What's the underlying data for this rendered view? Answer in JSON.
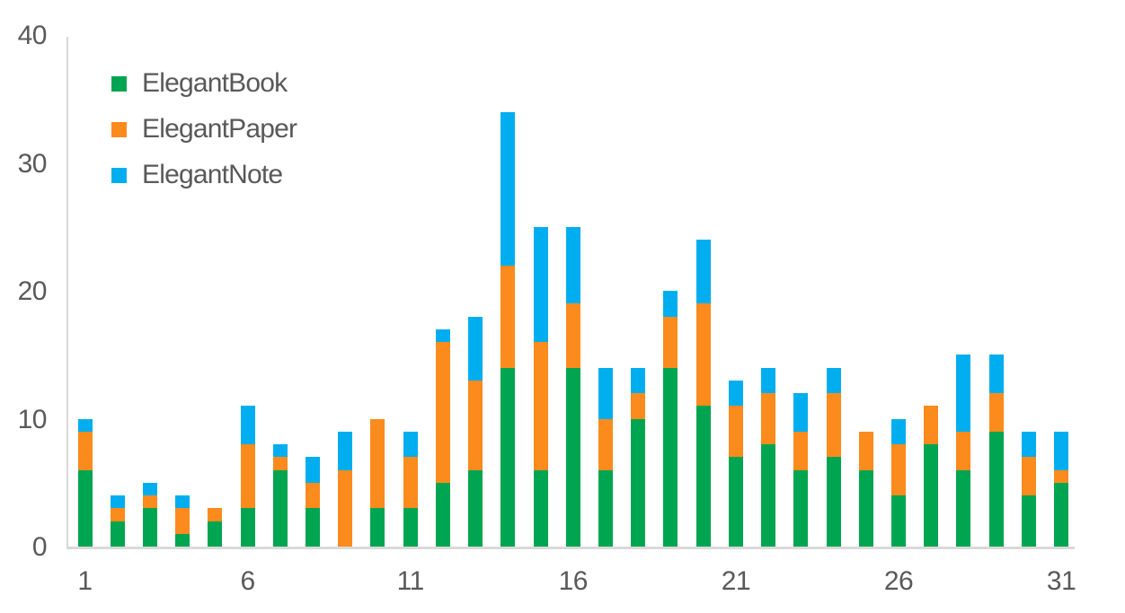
{
  "chart_data": {
    "type": "bar",
    "stacked": true,
    "title": "",
    "xlabel": "",
    "ylabel": "",
    "categories": [
      1,
      2,
      3,
      4,
      5,
      6,
      7,
      8,
      9,
      10,
      11,
      12,
      13,
      14,
      15,
      16,
      17,
      18,
      19,
      20,
      21,
      22,
      23,
      24,
      25,
      26,
      27,
      28,
      29,
      30,
      31
    ],
    "series": [
      {
        "name": "ElegantBook",
        "color": "#00A551",
        "values": [
          6,
          2,
          3,
          1,
          2,
          3,
          6,
          3,
          0,
          3,
          3,
          5,
          6,
          14,
          6,
          14,
          6,
          10,
          14,
          11,
          7,
          8,
          6,
          7,
          6,
          4,
          8,
          6,
          9,
          4,
          5
        ]
      },
      {
        "name": "ElegantPaper",
        "color": "#FB8B1C",
        "values": [
          3,
          1,
          1,
          2,
          1,
          5,
          1,
          2,
          6,
          7,
          4,
          11,
          7,
          8,
          10,
          5,
          4,
          2,
          4,
          8,
          4,
          4,
          3,
          5,
          3,
          4,
          3,
          3,
          3,
          3,
          1
        ]
      },
      {
        "name": "ElegantNote",
        "color": "#00AEEF",
        "values": [
          1,
          1,
          1,
          1,
          0,
          3,
          1,
          2,
          3,
          0,
          2,
          1,
          5,
          12,
          9,
          6,
          4,
          2,
          2,
          5,
          2,
          2,
          3,
          2,
          0,
          2,
          0,
          6,
          3,
          2,
          3
        ]
      }
    ],
    "totals": [
      10,
      4,
      5,
      4,
      3,
      11,
      8,
      7,
      9,
      10,
      9,
      17,
      18,
      34,
      25,
      25,
      14,
      14,
      20,
      24,
      13,
      14,
      12,
      14,
      9,
      10,
      11,
      15,
      15,
      9,
      9
    ],
    "ylim": [
      0,
      40
    ],
    "y_ticks": [
      0,
      10,
      20,
      30,
      40
    ],
    "y_tick_labels": [
      "0",
      "10",
      "20",
      "30",
      "40"
    ],
    "x_ticks": [
      1,
      6,
      11,
      16,
      21,
      26,
      31
    ],
    "x_tick_labels": [
      "1",
      "6",
      "11",
      "16",
      "21",
      "26",
      "31"
    ],
    "grid": false,
    "legend_position": "top-left"
  },
  "colors": {
    "axis_line": "#D9D9D9",
    "tick_label_text": "#595959",
    "legend_text": "#595959",
    "background": "#FFFFFF"
  }
}
